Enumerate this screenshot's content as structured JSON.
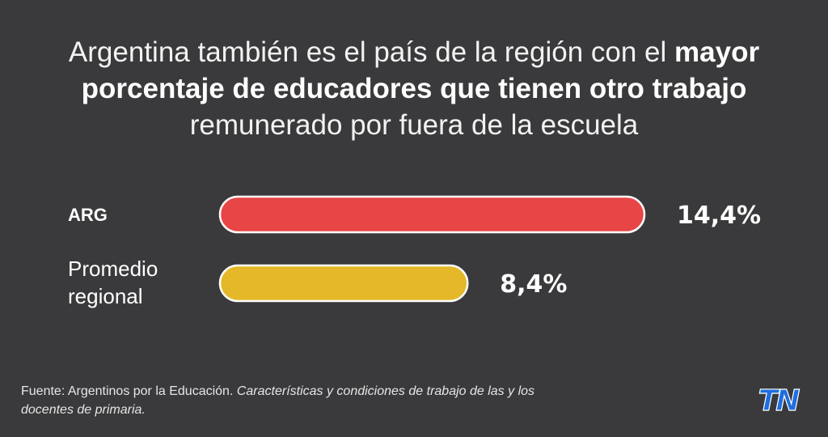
{
  "title": {
    "part1": "Argentina también es el país de la región con el",
    "part2_bold": "mayor porcentaje de educadores que tienen otro trabajo",
    "part3": "remunerado por fuera de la escuela"
  },
  "chart_data": {
    "type": "bar",
    "orientation": "horizontal",
    "categories": [
      "ARG",
      "Promedio regional"
    ],
    "category_lines": [
      [
        "ARG"
      ],
      [
        "Promedio",
        "regional"
      ]
    ],
    "values": [
      14.4,
      8.4
    ],
    "value_labels": [
      "14,4%",
      "8,4%"
    ],
    "colors": [
      "#e84546",
      "#e4b829"
    ],
    "xlim": [
      0,
      14.4
    ],
    "grid": false
  },
  "source": {
    "prefix": "Fuente: Argentinos por la Educación.",
    "italic": "Características y condiciones de trabajo de las y los docentes de primaria."
  },
  "logo": {
    "text": "TN",
    "icon": "tn-logo-icon",
    "color": "#1e6ee0"
  }
}
